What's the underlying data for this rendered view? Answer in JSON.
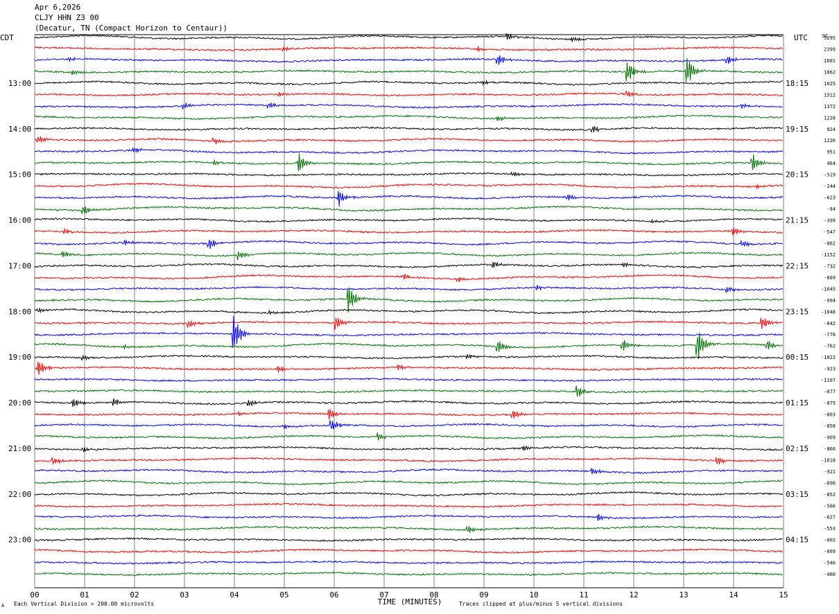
{
  "header": {
    "date": "Apr 6,2026",
    "station": "CLJY HHN Z3 00",
    "location": "(Decatur, TN (Compact Horizon to Centaur))"
  },
  "colors": {
    "trace_cycle": [
      "#000000",
      "#ff0000",
      "#0000ff",
      "#007000"
    ],
    "grid": "#808080",
    "background": "#ffffff"
  },
  "chart_data": {
    "type": "line",
    "title": "",
    "xlabel": "TIME (MINUTES)",
    "ylabel": "",
    "x_ticks": [
      "00",
      "01",
      "02",
      "03",
      "04",
      "05",
      "06",
      "07",
      "08",
      "09",
      "10",
      "11",
      "12",
      "13",
      "14",
      "15"
    ],
    "xlim": [
      0,
      15
    ],
    "left_axis_label": "CDT",
    "right_axis_label": "UTC",
    "dc_label": "DC",
    "left_time_labels": [
      {
        "row": 4,
        "label": "13:00"
      },
      {
        "row": 8,
        "label": "14:00"
      },
      {
        "row": 12,
        "label": "15:00"
      },
      {
        "row": 16,
        "label": "16:00"
      },
      {
        "row": 20,
        "label": "17:00"
      },
      {
        "row": 24,
        "label": "18:00"
      },
      {
        "row": 28,
        "label": "19:00"
      },
      {
        "row": 32,
        "label": "20:00"
      },
      {
        "row": 36,
        "label": "21:00"
      },
      {
        "row": 40,
        "label": "22:00"
      },
      {
        "row": 44,
        "label": "23:00"
      }
    ],
    "right_time_labels": [
      {
        "row": 4,
        "label": "18:15"
      },
      {
        "row": 8,
        "label": "19:15"
      },
      {
        "row": 12,
        "label": "20:15"
      },
      {
        "row": 16,
        "label": "21:15"
      },
      {
        "row": 20,
        "label": "22:15"
      },
      {
        "row": 24,
        "label": "23:15"
      },
      {
        "row": 28,
        "label": "00:15"
      },
      {
        "row": 32,
        "label": "01:15"
      },
      {
        "row": 36,
        "label": "02:15"
      },
      {
        "row": 40,
        "label": "03:15"
      },
      {
        "row": 44,
        "label": "04:15"
      }
    ],
    "dc_offsets": [
      "5295",
      "2399",
      "1601",
      "1862",
      "1025",
      "1512",
      "1372",
      "1228",
      "924",
      "1226",
      "951",
      "464",
      "-519",
      "-244",
      "-623",
      "-94",
      "-399",
      "-547",
      "-862",
      "-1152",
      "-732",
      "-669",
      "-1045",
      "-994",
      "-1048",
      "-842",
      "-776",
      "-762",
      "-1022",
      "-923",
      "-1107",
      "-877",
      "-875",
      "-803",
      "-858",
      "-909",
      "-860",
      "-1018",
      "-921",
      "-890",
      "-852",
      "-566",
      "-627",
      "-553",
      "-602",
      "-669",
      "-540",
      "-460"
    ],
    "events": [
      {
        "row": 0,
        "minute": 9.5,
        "amp": 5
      },
      {
        "row": 0,
        "minute": 10.8,
        "amp": 3
      },
      {
        "row": 1,
        "minute": 5.0,
        "amp": 3
      },
      {
        "row": 1,
        "minute": 8.9,
        "amp": 3
      },
      {
        "row": 2,
        "minute": 0.7,
        "amp": 3
      },
      {
        "row": 2,
        "minute": 9.3,
        "amp": 8
      },
      {
        "row": 2,
        "minute": 13.9,
        "amp": 6
      },
      {
        "row": 3,
        "minute": 11.9,
        "amp": 14
      },
      {
        "row": 3,
        "minute": 13.1,
        "amp": 18
      },
      {
        "row": 3,
        "minute": 0.8,
        "amp": 3
      },
      {
        "row": 4,
        "minute": 9.0,
        "amp": 3
      },
      {
        "row": 5,
        "minute": 4.9,
        "amp": 4
      },
      {
        "row": 5,
        "minute": 11.9,
        "amp": 5
      },
      {
        "row": 6,
        "minute": 3.0,
        "amp": 5
      },
      {
        "row": 6,
        "minute": 4.7,
        "amp": 4
      },
      {
        "row": 6,
        "minute": 14.2,
        "amp": 3
      },
      {
        "row": 7,
        "minute": 9.3,
        "amp": 4
      },
      {
        "row": 8,
        "minute": 11.2,
        "amp": 5
      },
      {
        "row": 9,
        "minute": 0.1,
        "amp": 5
      },
      {
        "row": 9,
        "minute": 3.6,
        "amp": 5
      },
      {
        "row": 10,
        "minute": 2.0,
        "amp": 4
      },
      {
        "row": 11,
        "minute": 5.3,
        "amp": 14
      },
      {
        "row": 11,
        "minute": 14.4,
        "amp": 12
      },
      {
        "row": 11,
        "minute": 3.6,
        "amp": 4
      },
      {
        "row": 12,
        "minute": 9.6,
        "amp": 3
      },
      {
        "row": 13,
        "minute": 14.5,
        "amp": 3
      },
      {
        "row": 14,
        "minute": 6.1,
        "amp": 12
      },
      {
        "row": 14,
        "minute": 10.7,
        "amp": 4
      },
      {
        "row": 15,
        "minute": 1.0,
        "amp": 6
      },
      {
        "row": 16,
        "minute": 12.4,
        "amp": 3
      },
      {
        "row": 17,
        "minute": 0.6,
        "amp": 4
      },
      {
        "row": 17,
        "minute": 14.0,
        "amp": 6
      },
      {
        "row": 18,
        "minute": 3.5,
        "amp": 8
      },
      {
        "row": 18,
        "minute": 1.8,
        "amp": 5
      },
      {
        "row": 18,
        "minute": 14.2,
        "amp": 4
      },
      {
        "row": 19,
        "minute": 4.1,
        "amp": 6
      },
      {
        "row": 19,
        "minute": 0.6,
        "amp": 5
      },
      {
        "row": 20,
        "minute": 9.2,
        "amp": 5
      },
      {
        "row": 20,
        "minute": 11.8,
        "amp": 3
      },
      {
        "row": 21,
        "minute": 7.4,
        "amp": 4
      },
      {
        "row": 21,
        "minute": 8.5,
        "amp": 4
      },
      {
        "row": 22,
        "minute": 10.1,
        "amp": 3
      },
      {
        "row": 22,
        "minute": 13.9,
        "amp": 4
      },
      {
        "row": 23,
        "minute": 6.3,
        "amp": 20
      },
      {
        "row": 24,
        "minute": 0.1,
        "amp": 3
      },
      {
        "row": 24,
        "minute": 4.7,
        "amp": 3
      },
      {
        "row": 25,
        "minute": 6.05,
        "amp": 10
      },
      {
        "row": 25,
        "minute": 3.1,
        "amp": 6
      },
      {
        "row": 25,
        "minute": 14.6,
        "amp": 8
      },
      {
        "row": 26,
        "minute": 4.0,
        "amp": 26
      },
      {
        "row": 27,
        "minute": 9.3,
        "amp": 9
      },
      {
        "row": 27,
        "minute": 11.8,
        "amp": 8
      },
      {
        "row": 27,
        "minute": 13.3,
        "amp": 22
      },
      {
        "row": 27,
        "minute": 14.7,
        "amp": 6
      },
      {
        "row": 27,
        "minute": 1.8,
        "amp": 3
      },
      {
        "row": 28,
        "minute": 1.0,
        "amp": 4
      },
      {
        "row": 28,
        "minute": 8.7,
        "amp": 3
      },
      {
        "row": 29,
        "minute": 0.1,
        "amp": 10
      },
      {
        "row": 29,
        "minute": 4.9,
        "amp": 5
      },
      {
        "row": 29,
        "minute": 7.3,
        "amp": 4
      },
      {
        "row": 31,
        "minute": 10.9,
        "amp": 8
      },
      {
        "row": 32,
        "minute": 0.8,
        "amp": 6
      },
      {
        "row": 32,
        "minute": 1.6,
        "amp": 5
      },
      {
        "row": 32,
        "minute": 4.3,
        "amp": 5
      },
      {
        "row": 33,
        "minute": 5.9,
        "amp": 9
      },
      {
        "row": 33,
        "minute": 9.6,
        "amp": 6
      },
      {
        "row": 33,
        "minute": 4.1,
        "amp": 3
      },
      {
        "row": 34,
        "minute": 5.0,
        "amp": 4
      },
      {
        "row": 34,
        "minute": 5.95,
        "amp": 9
      },
      {
        "row": 35,
        "minute": 6.9,
        "amp": 6
      },
      {
        "row": 36,
        "minute": 1.0,
        "amp": 3
      },
      {
        "row": 36,
        "minute": 9.8,
        "amp": 4
      },
      {
        "row": 37,
        "minute": 0.4,
        "amp": 5
      },
      {
        "row": 37,
        "minute": 13.7,
        "amp": 6
      },
      {
        "row": 38,
        "minute": 11.2,
        "amp": 5
      },
      {
        "row": 42,
        "minute": 11.3,
        "amp": 5
      },
      {
        "row": 43,
        "minute": 8.7,
        "amp": 6
      }
    ]
  },
  "footer": {
    "scale_note": "Each Vertical Division =  200.00 microvolts",
    "clip_note": "Traces clipped at plus/minus 5 vertical divisions",
    "corner_mark": "A"
  }
}
